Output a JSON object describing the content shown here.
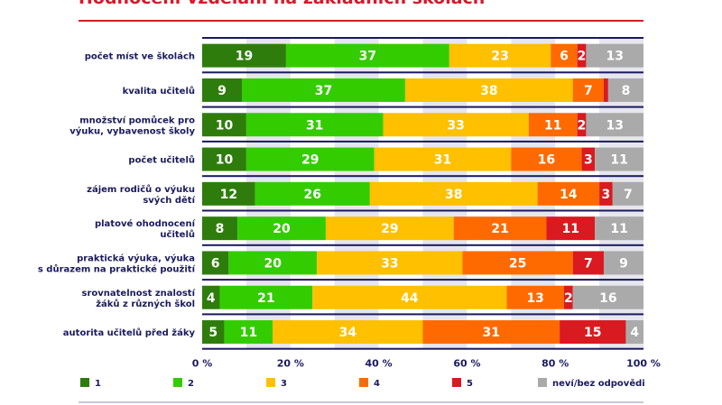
{
  "chart_data": {
    "type": "bar",
    "orientation": "horizontal-stacked-100",
    "title": "Hodnocení vzdělání na základních školách",
    "categories": [
      [
        "počet míst ve školách"
      ],
      [
        "kvalita učitelů"
      ],
      [
        "množství pomůcek pro",
        "výuku, vybavenost školy"
      ],
      [
        "počet učitelů"
      ],
      [
        "zájem rodičů o výuku",
        "svých dětí"
      ],
      [
        "platové ohodnocení",
        "učitelů"
      ],
      [
        "praktická výuka, výuka",
        "s důrazem na praktické použití"
      ],
      [
        "srovnatelnost znalostí",
        "žáků z různých škol"
      ],
      [
        "autorita učitelů před žáky"
      ]
    ],
    "series": [
      {
        "name": "1",
        "color": "#2e7d0c",
        "values": [
          19,
          9,
          10,
          10,
          12,
          8,
          6,
          4,
          5
        ]
      },
      {
        "name": "2",
        "color": "#33cc00",
        "values": [
          37,
          37,
          31,
          29,
          26,
          20,
          20,
          21,
          11
        ]
      },
      {
        "name": "3",
        "color": "#ffc000",
        "values": [
          23,
          38,
          33,
          31,
          38,
          29,
          33,
          44,
          34
        ]
      },
      {
        "name": "4",
        "color": "#ff6a00",
        "values": [
          6,
          7,
          11,
          16,
          14,
          21,
          25,
          13,
          31
        ]
      },
      {
        "name": "5",
        "color": "#d91a20",
        "values": [
          2,
          1,
          2,
          3,
          3,
          11,
          7,
          2,
          15
        ]
      },
      {
        "name": "neví/bez odpovědi",
        "color": "#aaaaaa",
        "values": [
          13,
          8,
          13,
          11,
          7,
          11,
          9,
          16,
          4
        ]
      }
    ],
    "xlim": [
      0,
      100
    ],
    "xticks": [
      "0 %",
      "20 %",
      "40 %",
      "60 %",
      "80 %",
      "100 %"
    ],
    "legend_position": "bottom",
    "label_min_value": 2
  }
}
